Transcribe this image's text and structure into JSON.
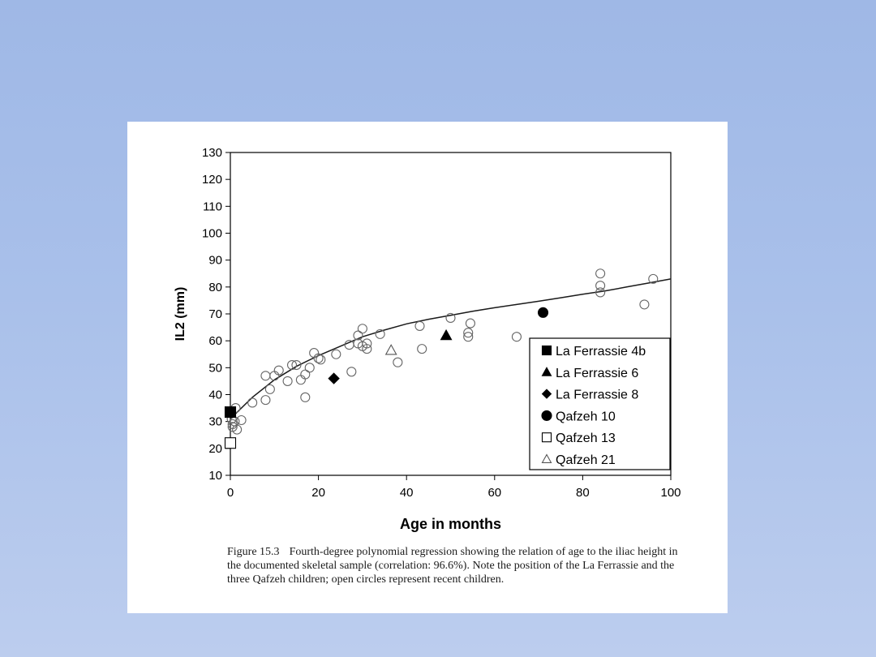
{
  "chart_data": {
    "type": "scatter",
    "xlabel": "Age in months",
    "ylabel": "IL2 (mm)",
    "xlim": [
      0,
      100
    ],
    "ylim": [
      10,
      130
    ],
    "xticks": [
      0,
      20,
      40,
      60,
      80,
      100
    ],
    "yticks": [
      10,
      20,
      30,
      40,
      50,
      60,
      70,
      80,
      90,
      100,
      110,
      120,
      130
    ],
    "grid": false,
    "legend_position": "bottom-right",
    "series": [
      {
        "name": "Recent children",
        "marker": "open-circle",
        "points": [
          [
            0.3,
            31
          ],
          [
            0.5,
            29
          ],
          [
            0.5,
            28
          ],
          [
            1,
            30
          ],
          [
            1.2,
            35
          ],
          [
            1.5,
            27
          ],
          [
            2.5,
            30.5
          ],
          [
            5,
            37
          ],
          [
            8,
            47
          ],
          [
            8,
            38
          ],
          [
            9,
            42
          ],
          [
            10,
            47
          ],
          [
            11,
            49
          ],
          [
            13,
            45
          ],
          [
            14,
            51
          ],
          [
            15,
            51
          ],
          [
            16,
            45.5
          ],
          [
            17,
            47.5
          ],
          [
            17,
            39
          ],
          [
            18,
            50
          ],
          [
            19,
            55.5
          ],
          [
            20,
            53.5
          ],
          [
            20.5,
            53
          ],
          [
            24,
            55
          ],
          [
            27,
            58.5
          ],
          [
            27.5,
            48.5
          ],
          [
            29,
            62
          ],
          [
            29,
            59
          ],
          [
            30,
            64.5
          ],
          [
            30,
            58
          ],
          [
            31,
            59
          ],
          [
            31,
            57
          ],
          [
            34,
            62.5
          ],
          [
            38,
            52
          ],
          [
            43,
            65.5
          ],
          [
            43.5,
            57
          ],
          [
            50,
            68.5
          ],
          [
            54,
            63
          ],
          [
            54,
            61.5
          ],
          [
            54.5,
            66.5
          ],
          [
            65,
            61.5
          ],
          [
            84,
            85
          ],
          [
            84,
            80.5
          ],
          [
            84,
            78
          ],
          [
            94,
            73.5
          ],
          [
            96,
            83
          ]
        ]
      },
      {
        "name": "La Ferrassie 4b",
        "marker": "filled-square",
        "points": [
          [
            0,
            33.5
          ]
        ]
      },
      {
        "name": "La Ferrassie 6",
        "marker": "filled-triangle",
        "points": [
          [
            49,
            62
          ]
        ]
      },
      {
        "name": "La Ferrassie 8",
        "marker": "filled-diamond",
        "points": [
          [
            23.5,
            46
          ]
        ]
      },
      {
        "name": "Qafzeh 10",
        "marker": "filled-circle",
        "points": [
          [
            71,
            70.5
          ]
        ]
      },
      {
        "name": "Qafzeh 13",
        "marker": "open-square",
        "points": [
          [
            0,
            22
          ]
        ]
      },
      {
        "name": "Qafzeh 21",
        "marker": "open-triangle",
        "points": [
          [
            36.5,
            56.5
          ]
        ]
      }
    ],
    "regression_curve": {
      "name": "Fourth-degree polynomial regression",
      "points": [
        [
          0,
          31
        ],
        [
          5,
          39
        ],
        [
          10,
          45.5
        ],
        [
          15,
          50.5
        ],
        [
          20,
          54.5
        ],
        [
          25,
          58
        ],
        [
          30,
          61.5
        ],
        [
          35,
          64
        ],
        [
          40,
          66.3
        ],
        [
          45,
          68
        ],
        [
          50,
          69.5
        ],
        [
          55,
          71
        ],
        [
          60,
          72.3
        ],
        [
          65,
          73.5
        ],
        [
          70,
          74.7
        ],
        [
          75,
          76
        ],
        [
          80,
          77.3
        ],
        [
          85,
          78.5
        ],
        [
          90,
          80
        ],
        [
          95,
          81.5
        ],
        [
          100,
          83
        ]
      ]
    },
    "legend": [
      {
        "label": "La Ferrassie 4b",
        "marker": "filled-square"
      },
      {
        "label": "La Ferrassie 6",
        "marker": "filled-triangle"
      },
      {
        "label": "La Ferrassie 8",
        "marker": "filled-diamond"
      },
      {
        "label": "Qafzeh 10",
        "marker": "filled-circle"
      },
      {
        "label": "Qafzeh 13",
        "marker": "open-square"
      },
      {
        "label": "Qafzeh 21",
        "marker": "open-triangle"
      }
    ]
  },
  "caption": {
    "figure_number": "Figure 15.3",
    "text": "Fourth-degree polynomial regression showing the relation of age to the iliac height in the documented skeletal sample (correlation: 96.6%). Note the position of the La Ferrassie and the three Qafzeh children; open circles represent recent children."
  }
}
